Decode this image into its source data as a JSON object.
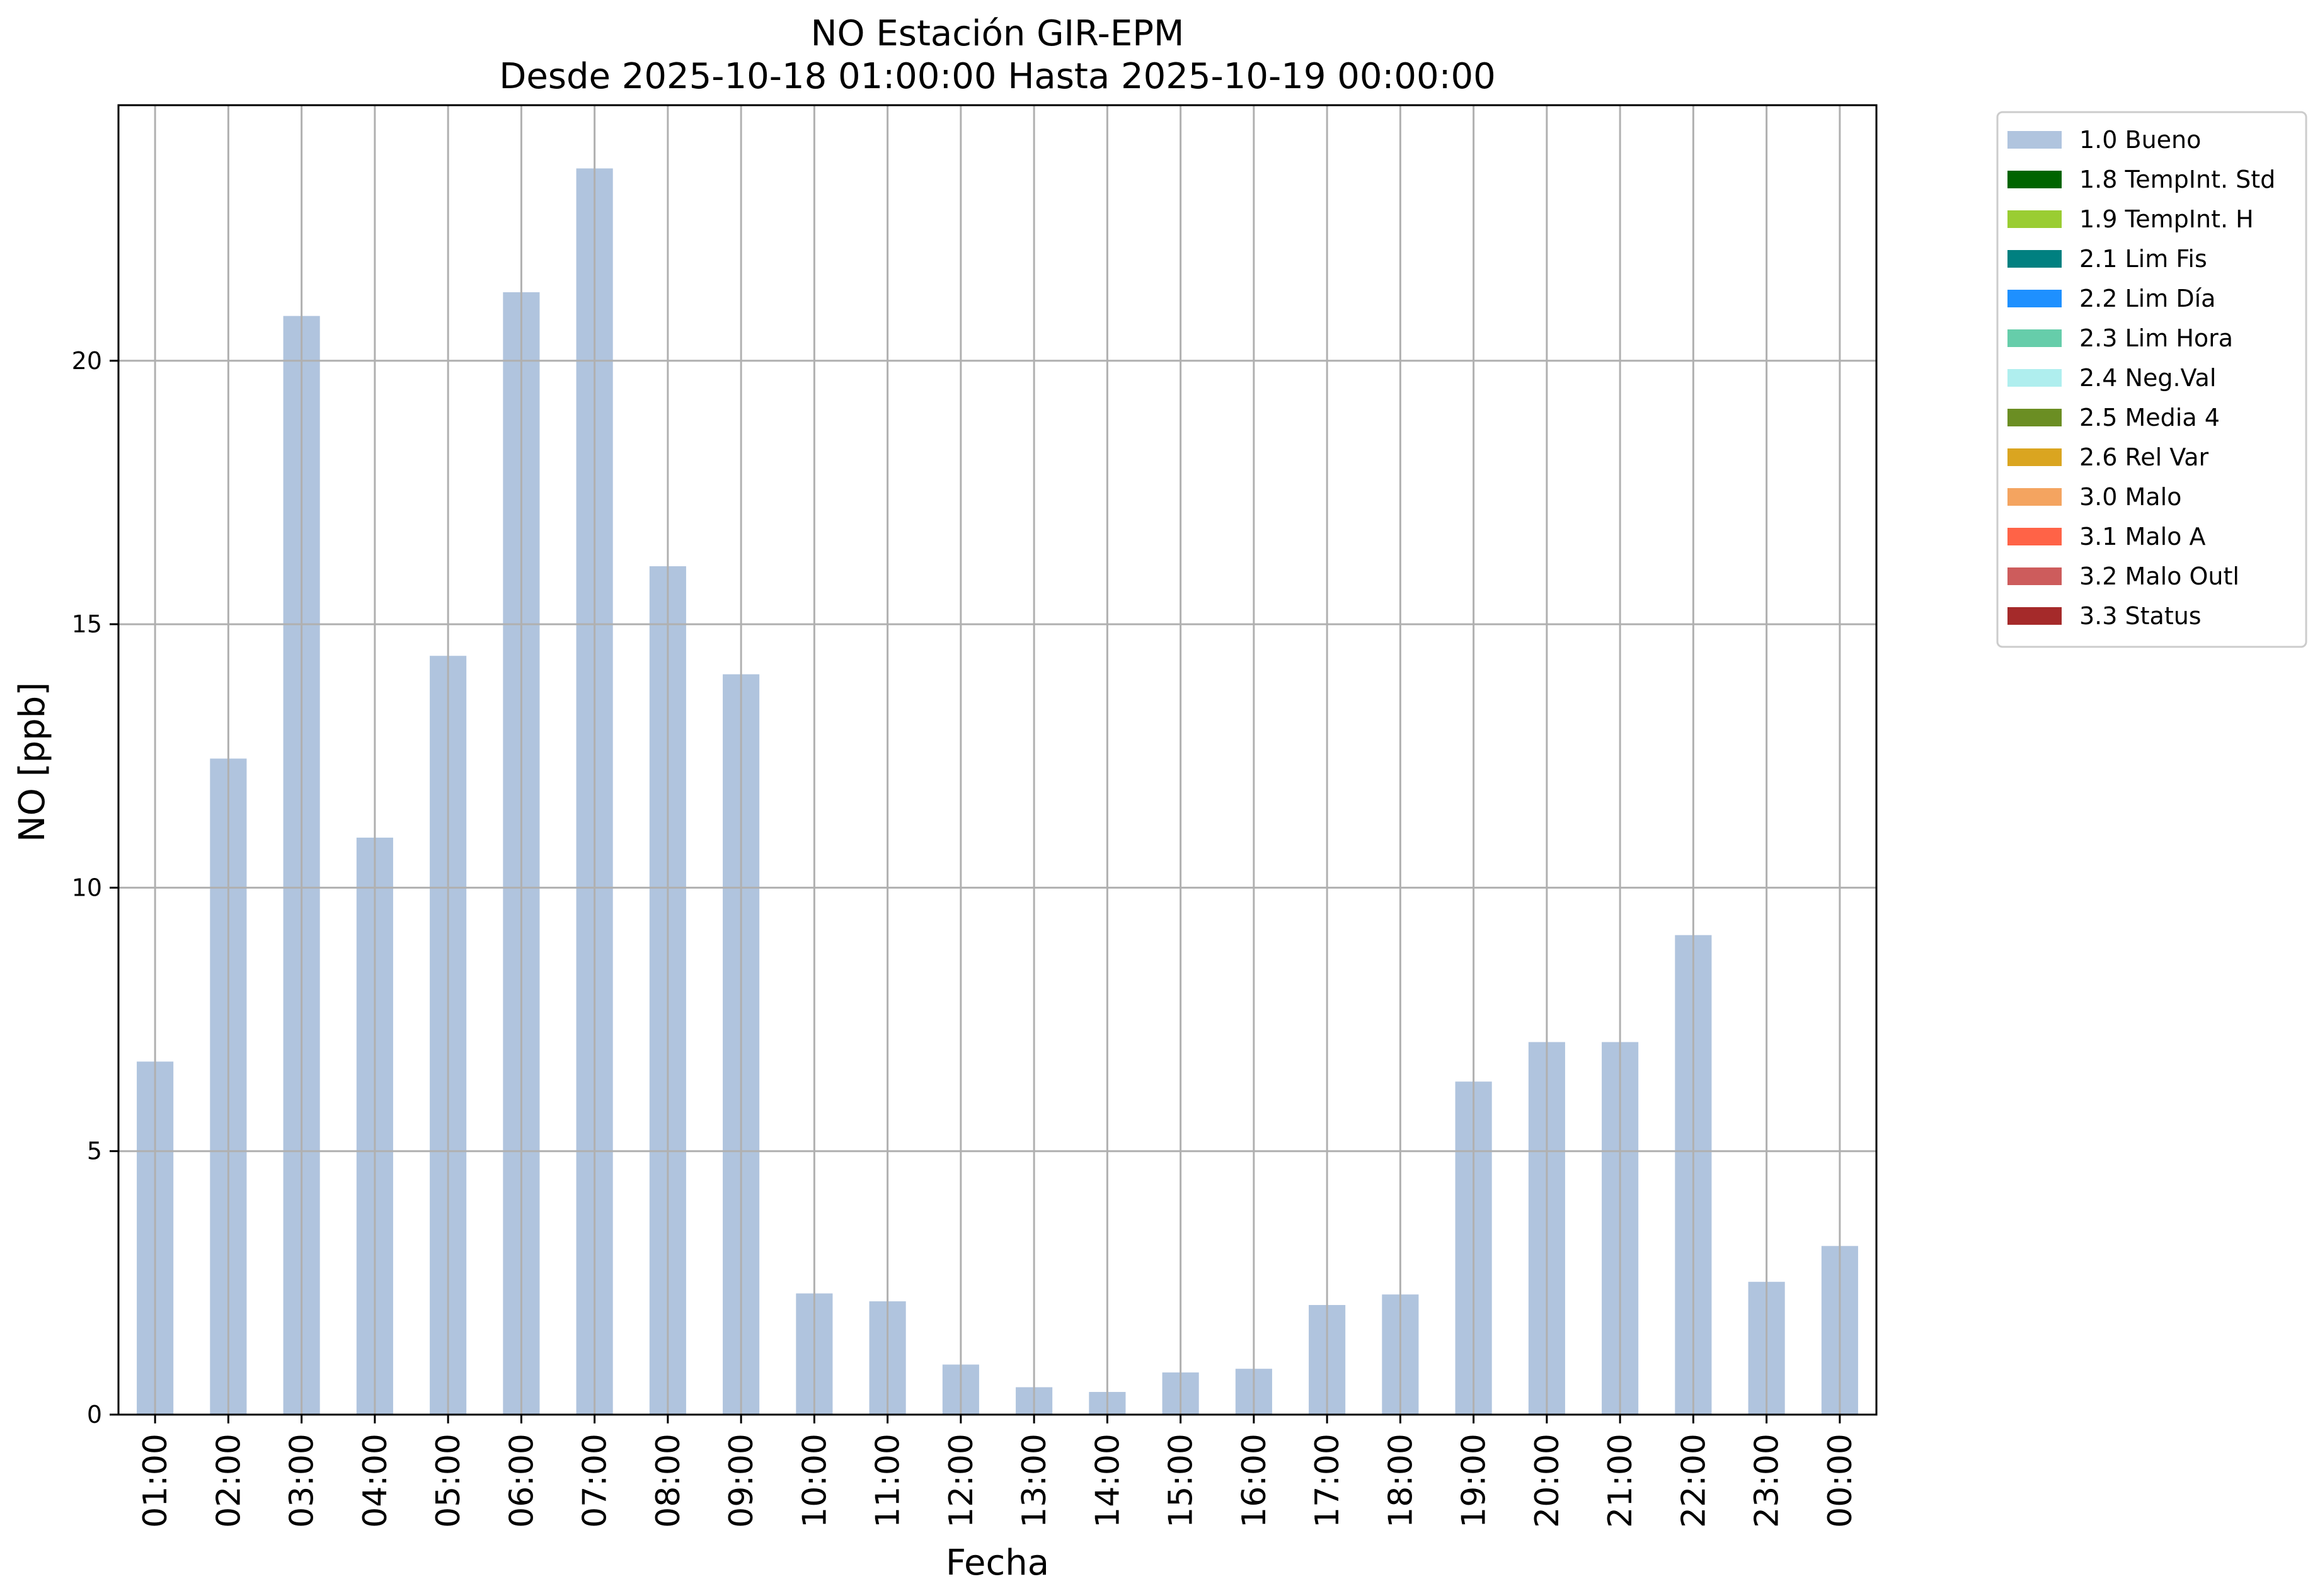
{
  "chart_data": {
    "type": "bar",
    "title": "NO Estación GIR-EPM",
    "subtitle": "Desde 2025-10-18 01:00:00 Hasta 2025-10-19 00:00:00",
    "xlabel": "Fecha",
    "ylabel": "NO [ppb]",
    "ylim": [
      0,
      24.85
    ],
    "yticks": [
      0,
      5,
      10,
      15,
      20
    ],
    "grid": true,
    "legend_position": "outside-top-right",
    "categories": [
      "01:00",
      "02:00",
      "03:00",
      "04:00",
      "05:00",
      "06:00",
      "07:00",
      "08:00",
      "09:00",
      "10:00",
      "11:00",
      "12:00",
      "13:00",
      "14:00",
      "15:00",
      "16:00",
      "17:00",
      "18:00",
      "19:00",
      "20:00",
      "21:00",
      "22:00",
      "23:00",
      "00:00"
    ],
    "series": [
      {
        "name": "1.0 Bueno",
        "color": "#b0c4de",
        "values": [
          6.7,
          12.45,
          20.85,
          10.95,
          14.4,
          21.3,
          23.65,
          16.1,
          14.05,
          2.3,
          2.15,
          0.95,
          0.52,
          0.43,
          0.8,
          0.87,
          2.08,
          2.28,
          6.32,
          7.07,
          7.07,
          9.1,
          2.52,
          3.2
        ]
      }
    ],
    "legend": [
      {
        "label": "1.0 Bueno",
        "color": "#b0c4de"
      },
      {
        "label": "1.8 TempInt. Std",
        "color": "#006400"
      },
      {
        "label": "1.9 TempInt. H",
        "color": "#9acd32"
      },
      {
        "label": "2.1 Lim Fis",
        "color": "#008080"
      },
      {
        "label": "2.2 Lim Día",
        "color": "#1e90ff"
      },
      {
        "label": "2.3 Lim Hora",
        "color": "#66cdaa"
      },
      {
        "label": "2.4 Neg.Val",
        "color": "#afeeee"
      },
      {
        "label": "2.5 Media 4",
        "color": "#6b8e23"
      },
      {
        "label": "2.6 Rel Var",
        "color": "#daa520"
      },
      {
        "label": "3.0 Malo",
        "color": "#f4a460"
      },
      {
        "label": "3.1 Malo A",
        "color": "#ff6347"
      },
      {
        "label": "3.2 Malo Outl",
        "color": "#cd5c5c"
      },
      {
        "label": "3.3 Status",
        "color": "#a52a2a"
      }
    ]
  }
}
